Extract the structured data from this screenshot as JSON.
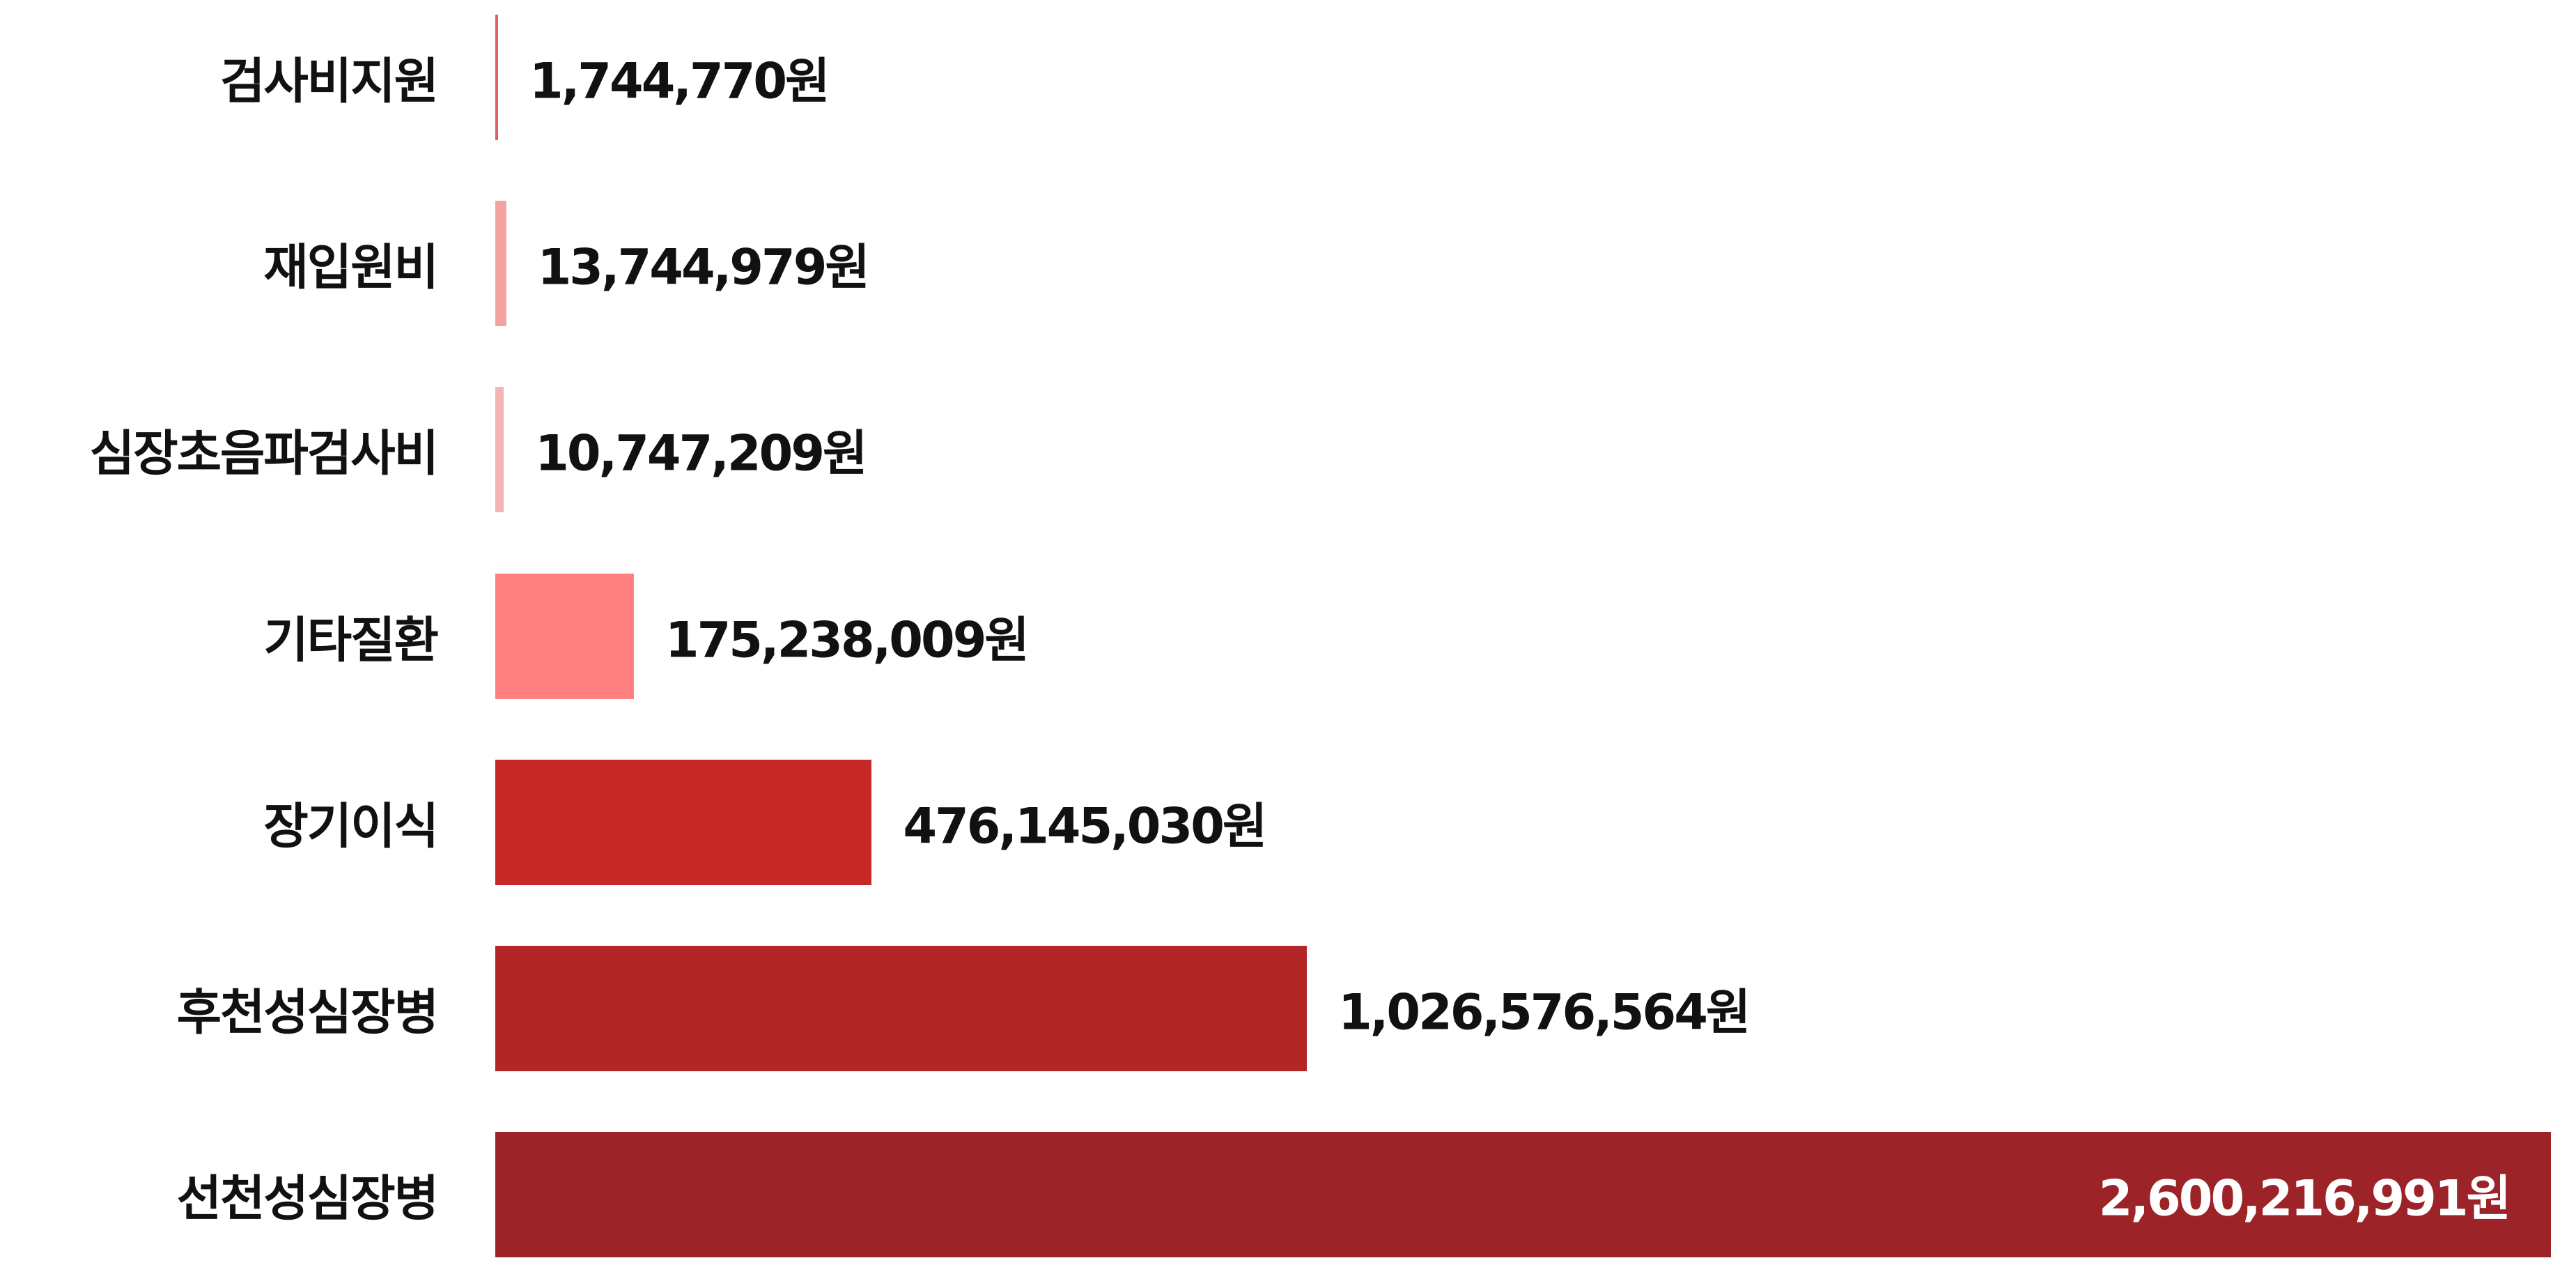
{
  "chart_data": {
    "type": "bar",
    "orientation": "horizontal",
    "unit": "원",
    "categories": [
      "검사비지원",
      "재입원비",
      "심장초음파검사비",
      "기타질환",
      "장기이식",
      "후천성심장병",
      "선천성심장병"
    ],
    "values": [
      1744770,
      13744979,
      10747209,
      175238009,
      476145030,
      1026576564,
      2600216991
    ],
    "value_labels": [
      "1,744,770원",
      "13,744,979원",
      "10,747,209원",
      "175,238,009원",
      "476,145,030원",
      "1,026,576,564원",
      "2,600,216,991원"
    ],
    "colors": [
      "#e06060",
      "#f4a3a3",
      "#f6b3b3",
      "#ff7f7f",
      "#c62828",
      "#b22628",
      "#9c2428"
    ],
    "xlim": [
      0,
      2600216991
    ],
    "grid": false,
    "legend": "none",
    "title": "",
    "xlabel": "",
    "ylabel": ""
  }
}
